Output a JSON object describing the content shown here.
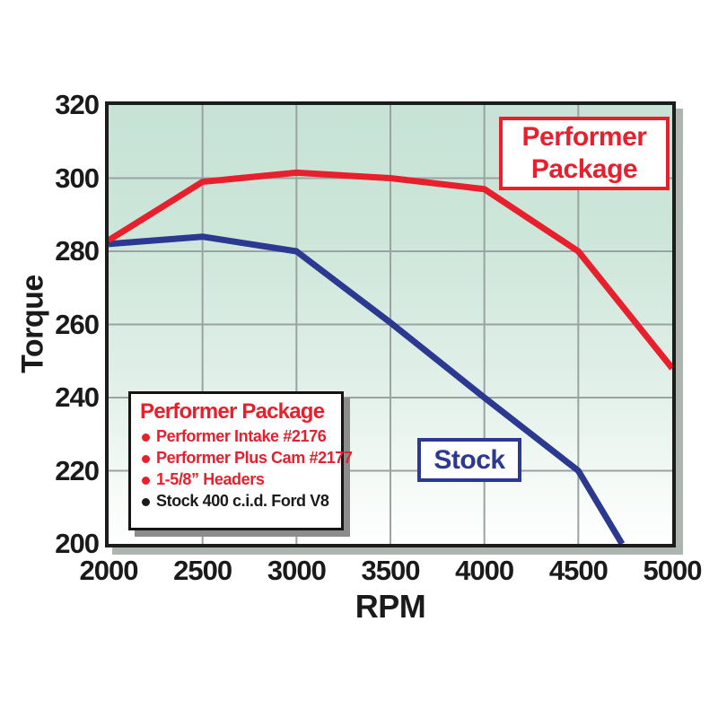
{
  "axes": {
    "x_title": "RPM",
    "y_title": "Torque"
  },
  "callouts": {
    "performer_line1": "Performer",
    "performer_line2": "Package",
    "stock_label": "Stock"
  },
  "legend": {
    "title": "Performer Package",
    "items": [
      {
        "text": "Performer Intake #2176",
        "color": "#e8202e"
      },
      {
        "text": "Performer Plus Cam #2177",
        "color": "#e8202e"
      },
      {
        "text": "1-5/8” Headers",
        "color": "#e8202e"
      },
      {
        "text": "Stock 400 c.i.d. Ford V8",
        "color": "#1a1a1a"
      }
    ]
  },
  "chart_data": {
    "type": "line",
    "title": "",
    "xlabel": "RPM",
    "ylabel": "Torque",
    "xlim": [
      2000,
      5000
    ],
    "ylim": [
      200,
      320
    ],
    "grid": true,
    "grid_color": "#9aa3a1",
    "background_gradient": [
      "#c7e2d6",
      "#ffffff"
    ],
    "x_ticks": [
      2000,
      2500,
      3000,
      3500,
      4000,
      4500,
      5000
    ],
    "y_ticks": [
      320,
      300,
      280,
      260,
      240,
      220,
      200
    ],
    "legend_position": "inside-lower-left",
    "series": [
      {
        "name": "Performer Package",
        "color": "#e8202e",
        "points": [
          [
            2000,
            283
          ],
          [
            2500,
            299
          ],
          [
            3000,
            301.5
          ],
          [
            3500,
            300
          ],
          [
            4000,
            297
          ],
          [
            4500,
            280
          ],
          [
            5000,
            248
          ]
        ]
      },
      {
        "name": "Stock",
        "color": "#2b3990",
        "points": [
          [
            2000,
            282
          ],
          [
            2500,
            284
          ],
          [
            3000,
            280
          ],
          [
            3500,
            260.5
          ],
          [
            4000,
            240
          ],
          [
            4500,
            220
          ],
          [
            4733,
            200
          ]
        ]
      }
    ]
  }
}
